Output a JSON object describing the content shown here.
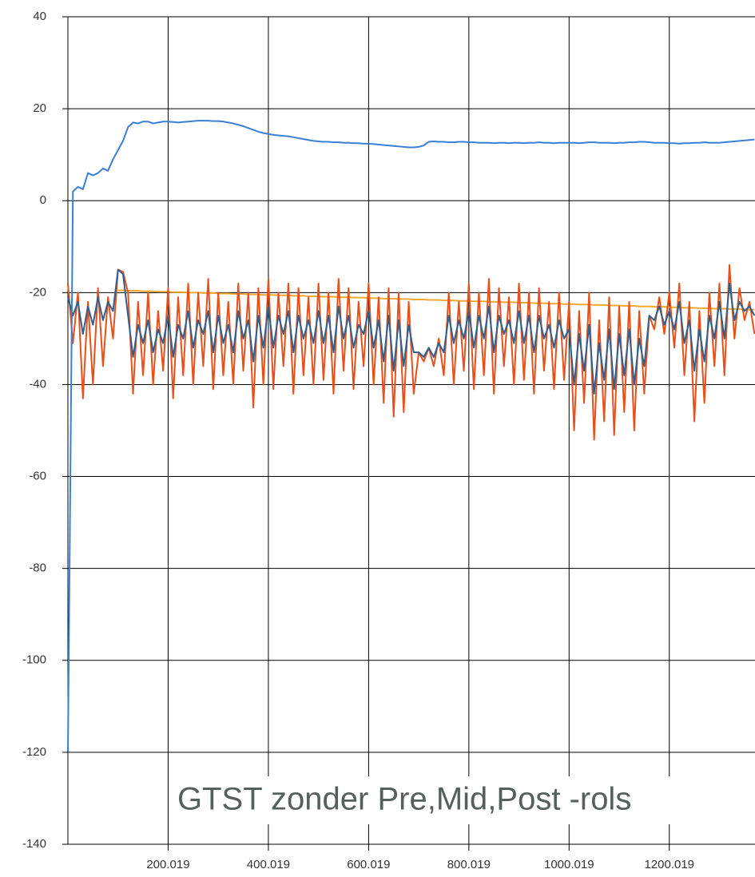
{
  "chart_data": {
    "type": "line",
    "annotation": "GTST zonder Pre,Mid,Post -rols",
    "x": [
      0,
      10,
      20,
      30,
      40,
      50,
      60,
      70,
      80,
      90,
      100,
      110,
      120,
      130,
      140,
      150,
      160,
      170,
      180,
      190,
      200,
      210,
      220,
      230,
      240,
      250,
      260,
      270,
      280,
      290,
      300,
      310,
      320,
      330,
      340,
      350,
      360,
      370,
      380,
      390,
      400,
      410,
      420,
      430,
      440,
      450,
      460,
      470,
      480,
      490,
      500,
      510,
      520,
      530,
      540,
      550,
      560,
      570,
      580,
      590,
      600,
      610,
      620,
      630,
      640,
      650,
      660,
      670,
      680,
      690,
      700,
      710,
      720,
      730,
      740,
      750,
      760,
      770,
      780,
      790,
      800,
      810,
      820,
      830,
      840,
      850,
      860,
      870,
      880,
      890,
      900,
      910,
      920,
      930,
      940,
      950,
      960,
      970,
      980,
      990,
      1000,
      1010,
      1020,
      1030,
      1040,
      1050,
      1060,
      1070,
      1080,
      1090,
      1100,
      1110,
      1120,
      1130,
      1140,
      1150,
      1160,
      1170,
      1180,
      1190,
      1200,
      1210,
      1220,
      1230,
      1240,
      1250,
      1260,
      1270,
      1280,
      1290,
      1300,
      1310,
      1320,
      1330,
      1340,
      1350,
      1360,
      1370
    ],
    "series": [
      {
        "color": "#f0a830",
        "values": [
          null,
          null,
          null,
          null,
          null,
          null,
          null,
          null,
          null,
          null,
          -19.5,
          -19.5,
          -19.6,
          -19.6,
          -19.6,
          -19.7,
          -19.7,
          -19.7,
          -19.8,
          -19.8,
          -19.8,
          -19.9,
          -19.9,
          -19.9,
          -20,
          -20,
          -20,
          -20.1,
          -20.1,
          -20.1,
          -20.2,
          -20.2,
          -20.2,
          -20.3,
          -20.3,
          -20.3,
          -20.4,
          -20.4,
          -20.4,
          -20.5,
          -20.5,
          -20.5,
          -20.6,
          -20.6,
          -20.6,
          -20.7,
          -20.7,
          -20.7,
          -20.8,
          -20.8,
          -20.8,
          -20.9,
          -20.9,
          -20.9,
          -21,
          -21,
          -21,
          -21.1,
          -21.1,
          -21.1,
          -21.2,
          -21.2,
          -21.2,
          -21.3,
          -21.3,
          -21.3,
          -21.4,
          -21.4,
          -21.4,
          -21.5,
          -21.5,
          -21.5,
          -21.6,
          -21.6,
          -21.6,
          -21.7,
          -21.7,
          -21.7,
          -21.8,
          -21.8,
          -21.8,
          -21.9,
          -21.9,
          -21.9,
          -22,
          -22,
          -22,
          -22.1,
          -22.1,
          -22.1,
          -22.2,
          -22.2,
          -22.2,
          -22.3,
          -22.3,
          -22.3,
          -22.4,
          -22.4,
          -22.4,
          -22.5,
          -22.5,
          -22.5,
          -22.6,
          -22.6,
          -22.6,
          -22.7,
          -22.7,
          -22.7,
          -22.8,
          -22.8,
          -22.8,
          -22.9,
          -22.9,
          -22.9,
          -23,
          -23,
          -23,
          -23.1,
          -23.1,
          -23.1,
          -23.2,
          -23.2,
          -23.2,
          -23.3,
          -23.3,
          -23.3,
          -23.4,
          -23.4,
          -23.4,
          -23.5,
          -23.5,
          -23.5,
          -23.6,
          -23.6,
          -23.6,
          -23.7,
          -23.7,
          -23.7
        ]
      },
      {
        "color": "#e8501a",
        "values": [
          -18,
          -31,
          -20,
          -43,
          -22,
          -40,
          -19,
          -36,
          -21,
          -30,
          -15,
          -15.5,
          -20,
          -42,
          -22,
          -38,
          -20,
          -40,
          -24,
          -37,
          -19,
          -43,
          -21,
          -38,
          -18,
          -40,
          -20,
          -36,
          -17,
          -41,
          -20,
          -38,
          -22,
          -40,
          -18,
          -37,
          -20,
          -45,
          -19,
          -40,
          -17,
          -41,
          -20,
          -36,
          -18,
          -42,
          -19,
          -38,
          -21,
          -40,
          -18,
          -39,
          -20,
          -42,
          -17,
          -37,
          -19,
          -41,
          -22,
          -36,
          -18,
          -40,
          -21,
          -44,
          -19,
          -47,
          -20,
          -46,
          -22,
          -42,
          -33,
          -35,
          -32,
          -36,
          -30,
          -38,
          -20,
          -40,
          -22,
          -37,
          -18,
          -41,
          -20,
          -38,
          -17,
          -42,
          -19,
          -36,
          -21,
          -40,
          -18,
          -39,
          -20,
          -42,
          -19,
          -37,
          -22,
          -41,
          -20,
          -39,
          -22,
          -50,
          -24,
          -44,
          -20,
          -52,
          -26,
          -48,
          -21,
          -51,
          -23,
          -46,
          -22,
          -50,
          -24,
          -42,
          -25,
          -28,
          -21,
          -29,
          -20,
          -32,
          -18,
          -38,
          -22,
          -48,
          -24,
          -44,
          -20,
          -36,
          -18,
          -38,
          -14,
          -30,
          -19,
          -26,
          -22,
          -29
        ]
      },
      {
        "color": "#2f6090",
        "values": [
          -21,
          -25,
          -22,
          -29,
          -23,
          -27,
          -21,
          -26,
          -22,
          -24,
          -15,
          -16,
          -25,
          -34,
          -27,
          -31,
          -26,
          -33,
          -28,
          -31,
          -25,
          -34,
          -27,
          -30,
          -24,
          -32,
          -26,
          -29,
          -24,
          -33,
          -25,
          -31,
          -27,
          -33,
          -24,
          -30,
          -26,
          -35,
          -25,
          -32,
          -23,
          -32,
          -25,
          -29,
          -24,
          -33,
          -25,
          -30,
          -26,
          -31,
          -24,
          -31,
          -25,
          -33,
          -23,
          -30,
          -25,
          -32,
          -27,
          -29,
          -24,
          -32,
          -26,
          -35,
          -25,
          -37,
          -26,
          -36,
          -27,
          -33,
          -33,
          -34,
          -32,
          -34,
          -31,
          -33,
          -25,
          -31,
          -26,
          -30,
          -24,
          -32,
          -25,
          -30,
          -23,
          -33,
          -25,
          -29,
          -26,
          -31,
          -24,
          -31,
          -25,
          -33,
          -25,
          -30,
          -27,
          -32,
          -26,
          -30,
          -28,
          -40,
          -29,
          -37,
          -27,
          -42,
          -31,
          -39,
          -28,
          -41,
          -29,
          -38,
          -28,
          -40,
          -30,
          -36,
          -25,
          -26,
          -23,
          -27,
          -24,
          -28,
          -22,
          -31,
          -26,
          -37,
          -28,
          -35,
          -25,
          -30,
          -22,
          -30,
          -18,
          -26,
          -22,
          -24,
          -23,
          -25
        ]
      },
      {
        "color": "#3a7fd5",
        "values": [
          -120,
          2,
          3,
          2.5,
          6,
          5.5,
          6,
          7,
          6.5,
          9,
          11,
          13,
          16,
          17,
          16.8,
          17.2,
          17.2,
          16.8,
          17,
          17.2,
          17.2,
          17.1,
          17,
          17.1,
          17.2,
          17.3,
          17.4,
          17.4,
          17.4,
          17.3,
          17.3,
          17.2,
          17,
          16.8,
          16.5,
          16.2,
          15.8,
          15.4,
          15,
          14.7,
          14.5,
          14.3,
          14.2,
          14.1,
          14,
          13.8,
          13.6,
          13.4,
          13.2,
          13,
          12.9,
          12.8,
          12.8,
          12.7,
          12.7,
          12.6,
          12.6,
          12.5,
          12.5,
          12.4,
          12.4,
          12.3,
          12.2,
          12.1,
          12,
          11.9,
          11.8,
          11.7,
          11.6,
          11.6,
          11.7,
          12,
          12.8,
          12.9,
          12.8,
          12.8,
          12.7,
          12.7,
          12.8,
          12.8,
          12.7,
          12.7,
          12.6,
          12.6,
          12.6,
          12.5,
          12.6,
          12.6,
          12.5,
          12.6,
          12.6,
          12.5,
          12.6,
          12.6,
          12.7,
          12.6,
          12.6,
          12.5,
          12.6,
          12.6,
          12.6,
          12.6,
          12.5,
          12.6,
          12.7,
          12.7,
          12.6,
          12.6,
          12.6,
          12.5,
          12.6,
          12.6,
          12.7,
          12.7,
          12.8,
          12.8,
          12.7,
          12.6,
          12.6,
          12.6,
          12.5,
          12.5,
          12.4,
          12.5,
          12.5,
          12.6,
          12.6,
          12.7,
          12.6,
          12.6,
          12.6,
          12.7,
          12.8,
          12.9,
          13,
          13.1,
          13.2,
          13.3
        ]
      }
    ],
    "xlim": [
      0,
      1371
    ],
    "ylim": [
      -140,
      40
    ],
    "xticks": [
      200.019,
      400.019,
      600.019,
      800.019,
      1000.019,
      1200.019
    ],
    "yticks": [
      -140,
      -120,
      -100,
      -80,
      -60,
      -40,
      -20,
      0,
      20,
      40
    ],
    "grid": true
  }
}
